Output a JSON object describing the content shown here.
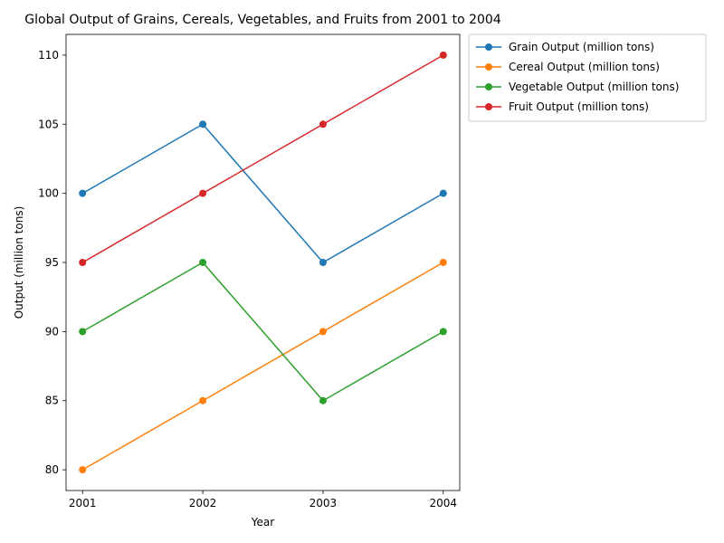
{
  "chart_data": {
    "type": "line",
    "title": "Global Output of Grains, Cereals, Vegetables, and Fruits from 2001 to 2004",
    "xlabel": "Year",
    "ylabel": "Output (million tons)",
    "x": [
      "2001",
      "2002",
      "2003",
      "2004"
    ],
    "ylim": [
      78.5,
      111.5
    ],
    "yticks": [
      80,
      85,
      90,
      95,
      100,
      105,
      110
    ],
    "grid": false,
    "legend_position": "outside upper right",
    "series": [
      {
        "name": "Grain Output (million tons)",
        "values": [
          100,
          105,
          95,
          100
        ],
        "color": "#1f77b4",
        "marker": "circle"
      },
      {
        "name": "Cereal Output (million tons)",
        "values": [
          80,
          85,
          90,
          95
        ],
        "color": "#ff7f0e",
        "marker": "circle"
      },
      {
        "name": "Vegetable Output (million tons)",
        "values": [
          90,
          95,
          85,
          90
        ],
        "color": "#2ca02c",
        "marker": "circle"
      },
      {
        "name": "Fruit Output (million tons)",
        "values": [
          95,
          100,
          105,
          110
        ],
        "color": "#d62728",
        "marker": "circle"
      }
    ]
  }
}
